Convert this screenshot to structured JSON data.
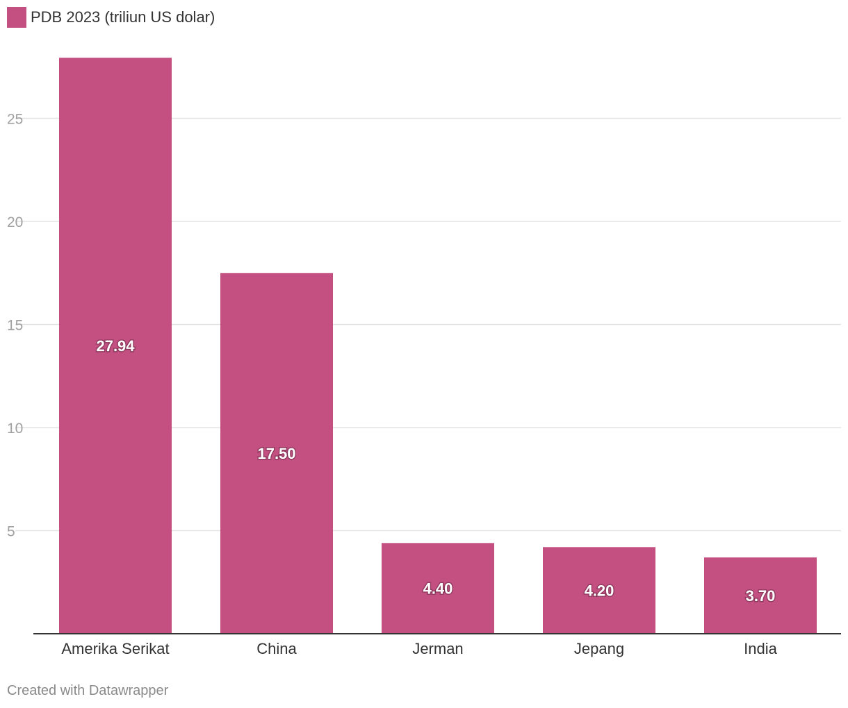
{
  "colors": {
    "bar": "#c45081",
    "grid": "#e4e4e4",
    "axis": "#333333"
  },
  "chart_data": {
    "type": "bar",
    "categories": [
      "Amerika Serikat",
      "China",
      "Jerman",
      "Jepang",
      "India"
    ],
    "series": [
      {
        "name": "PDB 2023 (triliun US dolar)",
        "values": [
          27.94,
          17.5,
          4.4,
          4.2,
          3.7
        ],
        "labels": [
          "27.94",
          "17.50",
          "4.40",
          "4.20",
          "3.70"
        ]
      }
    ],
    "yticks": [
      5,
      10,
      15,
      20,
      25
    ],
    "ylim": [
      0,
      30
    ],
    "grid": true,
    "legend_position": "top-left",
    "title": "",
    "xlabel": "",
    "ylabel": ""
  },
  "footer": {
    "credit": "Created with Datawrapper"
  }
}
